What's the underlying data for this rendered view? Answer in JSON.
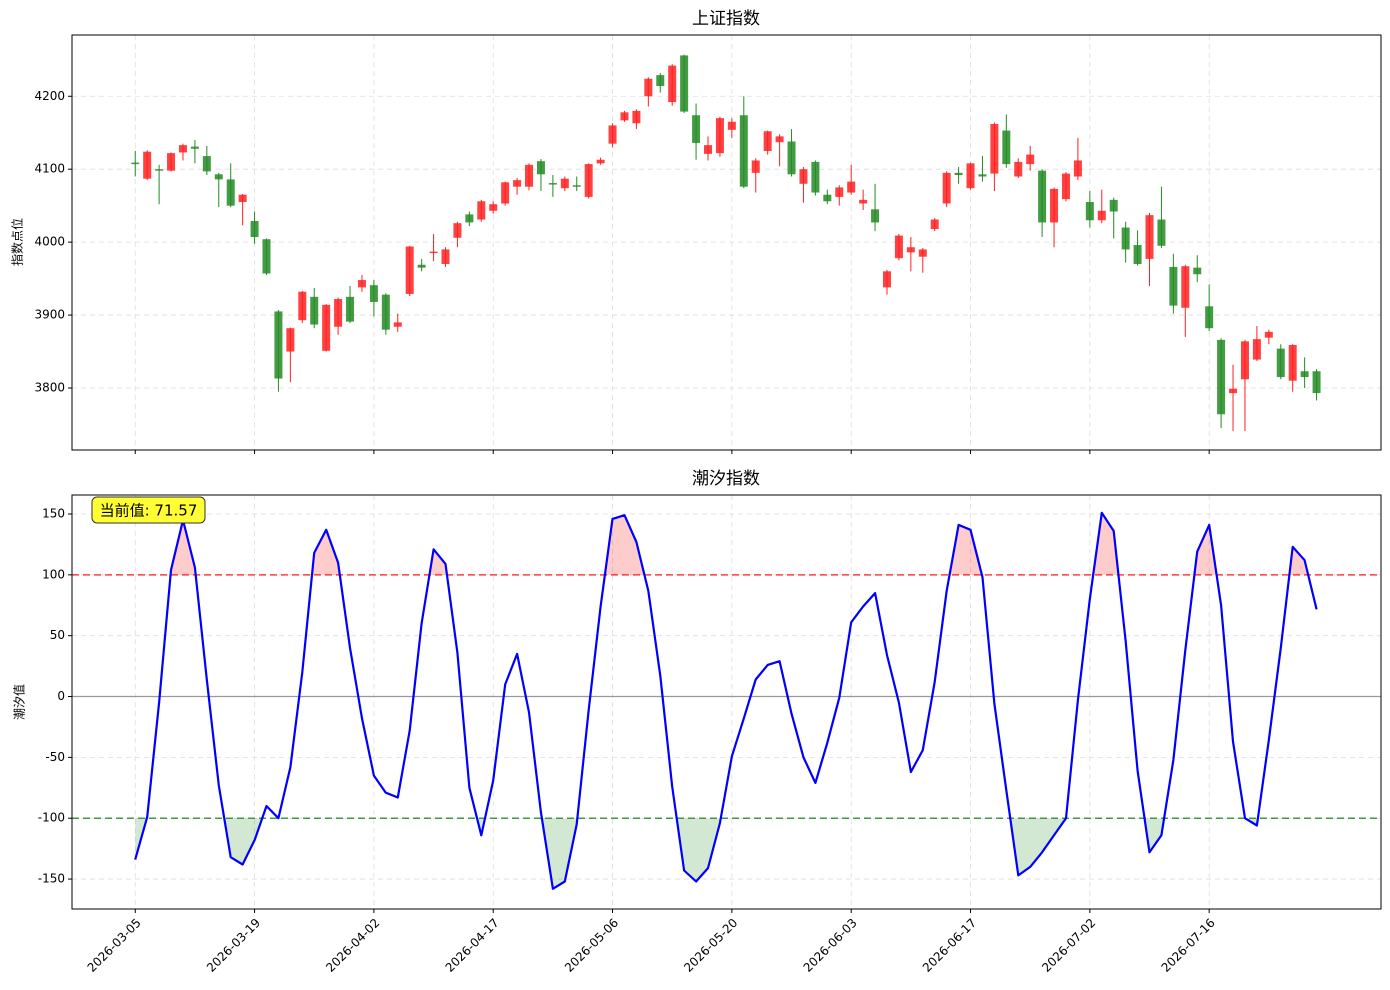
{
  "chart_data": [
    {
      "type": "candlestick",
      "title": "上证指数",
      "y_label": "指数点位",
      "up_color": "#ff2020",
      "down_color": "#228b22",
      "open": [
        4109,
        4087,
        4100,
        4098,
        4123,
        4131,
        4118,
        4093,
        4086,
        4055,
        4029,
        4004,
        3905,
        3850,
        3893,
        3925,
        3851,
        3884,
        3925,
        3938,
        3941,
        3928,
        3884,
        3929,
        3969,
        3985,
        3970,
        4006,
        4038,
        4031,
        4043,
        4053,
        4076,
        4076,
        4111,
        4081,
        4074,
        4078,
        4062,
        4108,
        4135,
        4167,
        4163,
        4200,
        4229,
        4192,
        4256,
        4174,
        4121,
        4122,
        4154,
        4174,
        4095,
        4125,
        4137,
        4138,
        4080,
        4110,
        4065,
        4062,
        4068,
        4053,
        4045,
        3938,
        3978,
        3986,
        3980,
        4018,
        4053,
        4095,
        4074,
        4093,
        4094,
        4153,
        4090,
        4107,
        4098,
        4027,
        4059,
        4090,
        4055,
        4030,
        4058,
        4020,
        3996,
        3977,
        4031,
        3966,
        3910,
        3965,
        3912,
        3866,
        3793,
        3812,
        3839,
        3869,
        3854,
        3810,
        3823,
        3823
      ],
      "high": [
        4125,
        4126,
        4106,
        4123,
        4135,
        4140,
        4132,
        4095,
        4108,
        4066,
        4042,
        4005,
        3907,
        3883,
        3933,
        3937,
        3915,
        3924,
        3940,
        3955,
        3948,
        3930,
        3902,
        3995,
        3977,
        4011,
        3993,
        4028,
        4042,
        4058,
        4056,
        4083,
        4088,
        4108,
        4114,
        4092,
        4090,
        4090,
        4108,
        4116,
        4163,
        4180,
        4182,
        4226,
        4232,
        4244,
        4257,
        4190,
        4145,
        4172,
        4170,
        4200,
        4115,
        4153,
        4148,
        4155,
        4103,
        4112,
        4072,
        4078,
        4106,
        4072,
        4080,
        3962,
        4011,
        4007,
        3992,
        4033,
        4097,
        4103,
        4109,
        4118,
        4164,
        4175,
        4115,
        4132,
        4100,
        4075,
        4096,
        4143,
        4070,
        4072,
        4061,
        4028,
        4016,
        4040,
        4076,
        3984,
        3969,
        3982,
        3942,
        3868,
        3832,
        3866,
        3885,
        3880,
        3860,
        3860,
        3842,
        3826
      ],
      "low": [
        4090,
        4085,
        4052,
        4097,
        4112,
        4108,
        4092,
        4048,
        4048,
        4023,
        3998,
        3955,
        3795,
        3808,
        3889,
        3882,
        3850,
        3873,
        3889,
        3932,
        3898,
        3873,
        3877,
        3926,
        3960,
        3974,
        3966,
        3993,
        4022,
        4028,
        4039,
        4050,
        4065,
        4071,
        4070,
        4062,
        4070,
        4070,
        4060,
        4106,
        4130,
        4165,
        4155,
        4186,
        4205,
        4187,
        4177,
        4113,
        4112,
        4117,
        4143,
        4074,
        4068,
        4120,
        4104,
        4090,
        4054,
        4064,
        4052,
        4050,
        4065,
        4044,
        4015,
        3928,
        3975,
        3960,
        3958,
        4015,
        4048,
        4080,
        4072,
        4083,
        4070,
        4102,
        4088,
        4098,
        4007,
        3993,
        4056,
        4085,
        4020,
        4026,
        4005,
        3972,
        3968,
        3940,
        3992,
        3902,
        3870,
        3945,
        3878,
        3745,
        3741,
        3741,
        3837,
        3860,
        3812,
        3795,
        3800,
        3783
      ],
      "close": [
        4108,
        4124,
        4098,
        4122,
        4133,
        4128,
        4097,
        4086,
        4050,
        4065,
        4007,
        3957,
        3813,
        3882,
        3932,
        3887,
        3914,
        3922,
        3891,
        3948,
        3918,
        3880,
        3890,
        3994,
        3965,
        3987,
        3990,
        4026,
        4027,
        4056,
        4052,
        4082,
        4085,
        4106,
        4093,
        4079,
        4087,
        4076,
        4107,
        4113,
        4160,
        4178,
        4180,
        4224,
        4214,
        4242,
        4179,
        4136,
        4133,
        4170,
        4165,
        4076,
        4112,
        4152,
        4145,
        4093,
        4100,
        4068,
        4056,
        4075,
        4083,
        4058,
        4027,
        3960,
        4009,
        3993,
        3990,
        4031,
        4095,
        4092,
        4108,
        4090,
        4162,
        4107,
        4110,
        4120,
        4027,
        4073,
        4094,
        4112,
        4030,
        4043,
        4042,
        3990,
        3970,
        4037,
        3995,
        3913,
        3967,
        3956,
        3882,
        3764,
        3799,
        3864,
        3867,
        3877,
        3815,
        3859,
        3815,
        3793
      ],
      "xlim": [
        -5.3,
        104.4
      ],
      "ylim": [
        3715,
        4284
      ],
      "yticks": [
        3800,
        3900,
        4000,
        4100,
        4200
      ],
      "grid": true
    },
    {
      "type": "line",
      "title": "潮汐指数",
      "y_label": "潮汐值",
      "color": "#0000ff",
      "categories": [
        "2026-03-05",
        null,
        null,
        null,
        null,
        null,
        null,
        null,
        null,
        null,
        "2026-03-19",
        null,
        null,
        null,
        null,
        null,
        null,
        null,
        null,
        null,
        "2026-04-02",
        null,
        null,
        null,
        null,
        null,
        null,
        null,
        null,
        null,
        "2026-04-17",
        null,
        null,
        null,
        null,
        null,
        null,
        null,
        null,
        null,
        "2026-05-06",
        null,
        null,
        null,
        null,
        null,
        null,
        null,
        null,
        null,
        "2026-05-20",
        null,
        null,
        null,
        null,
        null,
        null,
        null,
        null,
        null,
        "2026-06-03",
        null,
        null,
        null,
        null,
        null,
        null,
        null,
        null,
        null,
        "2026-06-17",
        null,
        null,
        null,
        null,
        null,
        null,
        null,
        null,
        null,
        "2026-07-02",
        null,
        null,
        null,
        null,
        null,
        null,
        null,
        null,
        null,
        "2026-07-16",
        null,
        null,
        null,
        null,
        null,
        null,
        null,
        null,
        null
      ],
      "values": [
        -134,
        -99,
        -5,
        104,
        145,
        106,
        14,
        -73,
        -132,
        -138,
        -118,
        -90,
        -100,
        -58,
        20,
        118,
        137,
        110,
        40,
        -18,
        -65,
        -79,
        -83,
        -28,
        60,
        121,
        109,
        36,
        -75,
        -114,
        -69,
        10,
        35,
        -13,
        -95,
        -158,
        -152,
        -105,
        -11,
        74,
        146,
        149,
        127,
        87,
        17,
        -74,
        -143,
        -152,
        -141,
        -104,
        -49,
        -18,
        14,
        26,
        29,
        -14,
        -50,
        -71,
        -38,
        -1,
        61,
        74,
        85,
        34,
        -5,
        -62,
        -44,
        12,
        87,
        141,
        137,
        98,
        -6,
        -77,
        -147,
        -140,
        -128,
        -114,
        -100,
        -3,
        80,
        151,
        136,
        46,
        -61,
        -128,
        -114,
        -52,
        38,
        119,
        141,
        75,
        -37,
        -100,
        -106,
        -36,
        40,
        123,
        112,
        71.57
      ],
      "annotation": "当前值: 71.57",
      "upper_threshold": 100,
      "lower_threshold": -100,
      "upper_color": "#ff0000",
      "lower_color": "#228b22",
      "xlim": [
        -5.3,
        104.4
      ],
      "ylim": [
        -174.6,
        165.6
      ],
      "yticks": [
        -150,
        -100,
        -50,
        0,
        50,
        100,
        150
      ],
      "grid": true
    }
  ]
}
